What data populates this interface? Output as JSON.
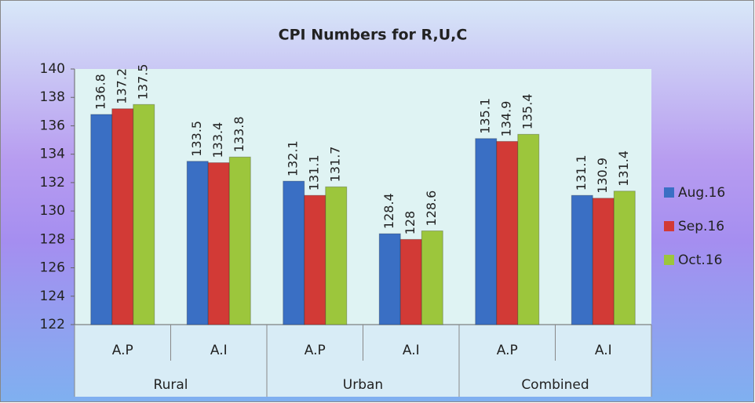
{
  "chart_data": {
    "type": "bar",
    "title": "CPI Numbers for R,U,C",
    "categories": [
      "A.P",
      "A.I",
      "A.P",
      "A.I",
      "A.P",
      "A.I"
    ],
    "groups": [
      "Rural",
      "Urban",
      "Combined"
    ],
    "series": [
      {
        "name": "Aug.16",
        "color": "#3a6fc4",
        "values": [
          136.8,
          133.5,
          132.1,
          128.4,
          135.1,
          131.1
        ]
      },
      {
        "name": "Sep.16",
        "color": "#d23a36",
        "values": [
          137.2,
          133.4,
          131.1,
          128,
          134.9,
          130.9
        ]
      },
      {
        "name": "Oct.16",
        "color": "#9cc63c",
        "values": [
          137.5,
          133.8,
          131.7,
          128.6,
          135.4,
          131.4
        ]
      }
    ],
    "ylim": [
      122,
      140
    ],
    "yticks": [
      122,
      124,
      126,
      128,
      130,
      132,
      134,
      136,
      138,
      140
    ],
    "legend": "right",
    "data_labels": true
  }
}
